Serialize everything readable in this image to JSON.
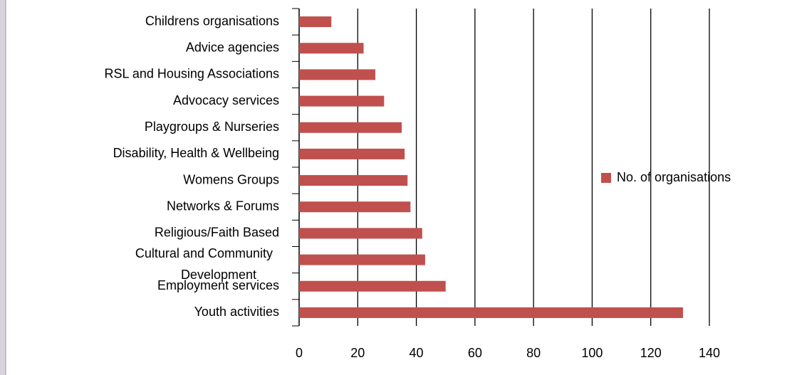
{
  "chart_data": {
    "type": "bar",
    "orientation": "horizontal",
    "categories": [
      "Childrens organisations",
      "Advice agencies",
      "RSL and Housing Associations",
      "Advocacy services",
      "Playgroups & Nurseries",
      "Disability, Health & Wellbeing",
      "Womens Groups",
      "Networks & Forums",
      "Religious/Faith Based",
      "Cultural and Community Development",
      "Employment services",
      "Youth activities"
    ],
    "series": [
      {
        "name": "No. of organisations",
        "color": "#c0504d",
        "values": [
          11,
          22,
          26,
          29,
          35,
          36,
          37,
          38,
          42,
          43,
          50,
          131
        ]
      }
    ],
    "xlim": [
      0,
      140
    ],
    "xticks": [
      0,
      20,
      40,
      60,
      80,
      100,
      120,
      140
    ],
    "grid": true,
    "legend": "right"
  }
}
